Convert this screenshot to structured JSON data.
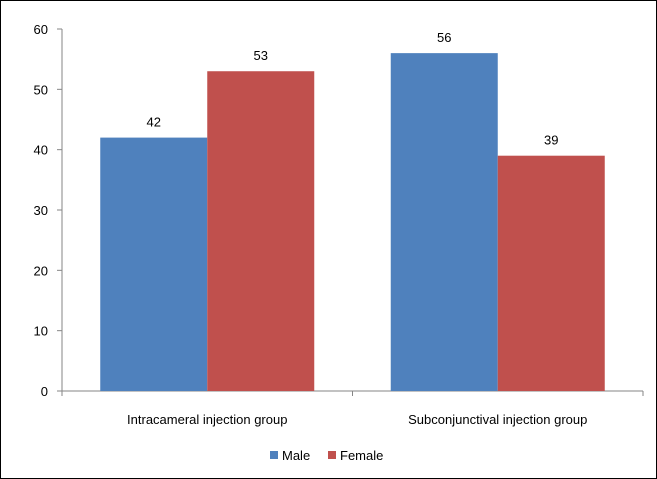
{
  "chart_data": {
    "type": "bar",
    "title": "",
    "xlabel": "",
    "ylabel": "",
    "categories": [
      "Intracameral injection group",
      "Subconjunctival injection group"
    ],
    "series": [
      {
        "name": "Male",
        "values": [
          42,
          56
        ],
        "color": "#4f81bd"
      },
      {
        "name": "Female",
        "values": [
          53,
          39
        ],
        "color": "#c0504d"
      }
    ],
    "ylim": [
      0,
      60
    ],
    "yticks": [
      0,
      10,
      20,
      30,
      40,
      50,
      60
    ],
    "grid": false,
    "legend_position": "bottom"
  }
}
